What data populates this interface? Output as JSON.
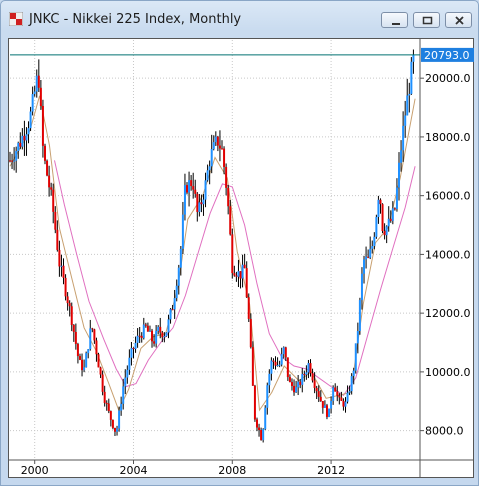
{
  "window": {
    "title": "JNKC - Nikkei 225 Index, Monthly"
  },
  "colors": {
    "up_candle": "#1e90ff",
    "down_candle": "#e00000",
    "short_ma": "#c8a070",
    "long_ma": "#e070c0",
    "last_price_line": "#007070",
    "last_price_tag": "#1e7fe0"
  },
  "chart_data": {
    "type": "candlestick",
    "symbol": "JNKC",
    "interval": "Monthly",
    "last_price_label": "20793.0",
    "last_price": 20793,
    "ylim": [
      7000,
      21300
    ],
    "xlim": [
      1999.0,
      2015.6
    ],
    "yticks": [
      {
        "value": 8000,
        "label": "8000.0"
      },
      {
        "value": 10000,
        "label": "10000.0"
      },
      {
        "value": 12000,
        "label": "12000.0"
      },
      {
        "value": 14000,
        "label": "14000.0"
      },
      {
        "value": 16000,
        "label": "16000.0"
      },
      {
        "value": 18000,
        "label": "18000.0"
      },
      {
        "value": 20000,
        "label": "20000.0"
      }
    ],
    "xticks": [
      {
        "value": 2000,
        "label": "2000"
      },
      {
        "value": 2004,
        "label": "2004"
      },
      {
        "value": 2008,
        "label": "2008"
      },
      {
        "value": 2012,
        "label": "2012"
      }
    ],
    "grid": true,
    "close_path": [
      [
        1999.0,
        17200
      ],
      [
        1999.4,
        17800
      ],
      [
        1999.8,
        18600
      ],
      [
        2000.15,
        20200
      ],
      [
        2000.35,
        17400
      ],
      [
        2000.7,
        15800
      ],
      [
        2001.0,
        13700
      ],
      [
        2001.3,
        12600
      ],
      [
        2001.5,
        11800
      ],
      [
        2001.8,
        10300
      ],
      [
        2002.0,
        10100
      ],
      [
        2002.3,
        11600
      ],
      [
        2002.5,
        10700
      ],
      [
        2002.8,
        9200
      ],
      [
        2003.0,
        8600
      ],
      [
        2003.3,
        7900
      ],
      [
        2003.6,
        9600
      ],
      [
        2003.9,
        10600
      ],
      [
        2004.2,
        11200
      ],
      [
        2004.5,
        11500
      ],
      [
        2004.8,
        11000
      ],
      [
        2005.0,
        11400
      ],
      [
        2005.3,
        11300
      ],
      [
        2005.6,
        12300
      ],
      [
        2005.9,
        14000
      ],
      [
        2006.1,
        16300
      ],
      [
        2006.4,
        16500
      ],
      [
        2006.6,
        15300
      ],
      [
        2006.9,
        16300
      ],
      [
        2007.1,
        17300
      ],
      [
        2007.4,
        17900
      ],
      [
        2007.6,
        17500
      ],
      [
        2007.8,
        16000
      ],
      [
        2008.0,
        13600
      ],
      [
        2008.3,
        13300
      ],
      [
        2008.5,
        13500
      ],
      [
        2008.7,
        11400
      ],
      [
        2008.9,
        8500
      ],
      [
        2009.2,
        7700
      ],
      [
        2009.4,
        9500
      ],
      [
        2009.6,
        10400
      ],
      [
        2009.9,
        10200
      ],
      [
        2010.1,
        10800
      ],
      [
        2010.3,
        9600
      ],
      [
        2010.6,
        9400
      ],
      [
        2010.9,
        9900
      ],
      [
        2011.1,
        10300
      ],
      [
        2011.3,
        9700
      ],
      [
        2011.6,
        9000
      ],
      [
        2011.9,
        8500
      ],
      [
        2012.1,
        9700
      ],
      [
        2012.3,
        9000
      ],
      [
        2012.6,
        8900
      ],
      [
        2012.9,
        10000
      ],
      [
        2013.1,
        11600
      ],
      [
        2013.3,
        13800
      ],
      [
        2013.5,
        13800
      ],
      [
        2013.7,
        14400
      ],
      [
        2013.95,
        16300
      ],
      [
        2014.1,
        14800
      ],
      [
        2014.4,
        15100
      ],
      [
        2014.6,
        15600
      ],
      [
        2014.8,
        17400
      ],
      [
        2015.0,
        18800
      ],
      [
        2015.3,
        20500
      ],
      [
        2015.4,
        20793
      ]
    ],
    "short_ma_path": [
      [
        1999.0,
        17000
      ],
      [
        1999.8,
        18200
      ],
      [
        2000.2,
        19400
      ],
      [
        2000.6,
        17700
      ],
      [
        2001.0,
        14900
      ],
      [
        2001.5,
        13200
      ],
      [
        2002.0,
        11500
      ],
      [
        2002.5,
        10700
      ],
      [
        2003.0,
        9600
      ],
      [
        2003.4,
        8700
      ],
      [
        2003.8,
        9400
      ],
      [
        2004.3,
        10800
      ],
      [
        2004.8,
        11200
      ],
      [
        2005.3,
        11300
      ],
      [
        2005.8,
        12900
      ],
      [
        2006.2,
        15200
      ],
      [
        2006.8,
        16000
      ],
      [
        2007.3,
        17300
      ],
      [
        2007.8,
        16600
      ],
      [
        2008.2,
        14100
      ],
      [
        2008.7,
        12300
      ],
      [
        2009.1,
        8700
      ],
      [
        2009.6,
        9300
      ],
      [
        2010.1,
        10200
      ],
      [
        2010.7,
        9700
      ],
      [
        2011.2,
        10000
      ],
      [
        2011.8,
        9100
      ],
      [
        2012.3,
        9200
      ],
      [
        2012.8,
        9300
      ],
      [
        2013.3,
        12300
      ],
      [
        2013.8,
        14400
      ],
      [
        2014.3,
        14900
      ],
      [
        2014.8,
        16600
      ],
      [
        2015.4,
        19300
      ]
    ],
    "long_ma_path": [
      [
        2000.8,
        17200
      ],
      [
        2001.2,
        15700
      ],
      [
        2001.7,
        14000
      ],
      [
        2002.2,
        12400
      ],
      [
        2002.8,
        11100
      ],
      [
        2003.3,
        10100
      ],
      [
        2003.7,
        9500
      ],
      [
        2004.1,
        9600
      ],
      [
        2004.6,
        10400
      ],
      [
        2005.1,
        11000
      ],
      [
        2005.6,
        11500
      ],
      [
        2006.1,
        12600
      ],
      [
        2006.6,
        14000
      ],
      [
        2007.1,
        15400
      ],
      [
        2007.6,
        16400
      ],
      [
        2008.0,
        16300
      ],
      [
        2008.5,
        15000
      ],
      [
        2009.0,
        13000
      ],
      [
        2009.5,
        11300
      ],
      [
        2010.0,
        10500
      ],
      [
        2010.5,
        10200
      ],
      [
        2011.0,
        10100
      ],
      [
        2011.5,
        9800
      ],
      [
        2012.0,
        9500
      ],
      [
        2012.5,
        9200
      ],
      [
        2013.0,
        9800
      ],
      [
        2013.5,
        11300
      ],
      [
        2014.0,
        12800
      ],
      [
        2014.5,
        14200
      ],
      [
        2015.0,
        15600
      ],
      [
        2015.4,
        17000
      ]
    ]
  }
}
